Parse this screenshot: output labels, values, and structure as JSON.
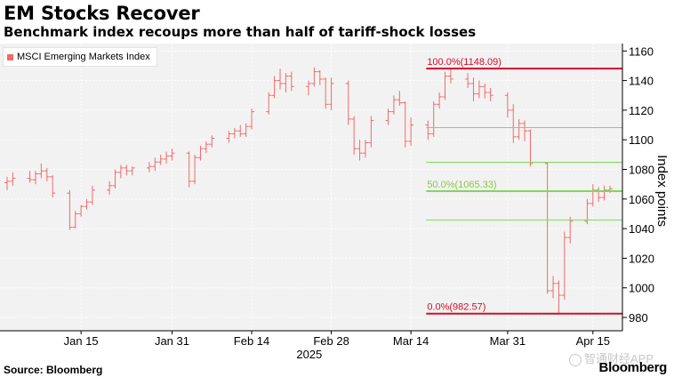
{
  "title": "EM Stocks Recover",
  "subtitle": "Benchmark index recoups more than half of tariff-shock losses",
  "source": "Source: Bloomberg",
  "brand": "Bloomberg",
  "watermark": "智通财经APP",
  "colors": {
    "candle": "#f06a6a",
    "level_red": "#d0102a",
    "level_green": "#7ed957",
    "level_gray": "#b0b0b0",
    "fib_label_red": "#d0102a",
    "fib_label_green": "#8cc63f"
  },
  "chart_data": {
    "type": "candlestick",
    "series": [
      {
        "name": "MSCI Emerging Markets Index",
        "ohlc": [
          {
            "date": "2025-01-02",
            "open": 1071,
            "high": 1075,
            "low": 1066,
            "close": 1072
          },
          {
            "date": "2025-01-03",
            "open": 1072,
            "high": 1078,
            "low": 1069,
            "close": 1074
          },
          {
            "date": "2025-01-06",
            "open": 1074,
            "high": 1079,
            "low": 1071,
            "close": 1073
          },
          {
            "date": "2025-01-07",
            "open": 1073,
            "high": 1079,
            "low": 1070,
            "close": 1077
          },
          {
            "date": "2025-01-08",
            "open": 1077,
            "high": 1084,
            "low": 1074,
            "close": 1079
          },
          {
            "date": "2025-01-09",
            "open": 1079,
            "high": 1081,
            "low": 1072,
            "close": 1075
          },
          {
            "date": "2025-01-10",
            "open": 1075,
            "high": 1076,
            "low": 1061,
            "close": 1064
          },
          {
            "date": "2025-01-13",
            "open": 1064,
            "high": 1066,
            "low": 1039,
            "close": 1041
          },
          {
            "date": "2025-01-14",
            "open": 1041,
            "high": 1052,
            "low": 1040,
            "close": 1050
          },
          {
            "date": "2025-01-15",
            "open": 1050,
            "high": 1056,
            "low": 1048,
            "close": 1055
          },
          {
            "date": "2025-01-16",
            "open": 1055,
            "high": 1060,
            "low": 1053,
            "close": 1058
          },
          {
            "date": "2025-01-17",
            "open": 1058,
            "high": 1069,
            "low": 1056,
            "close": 1066
          },
          {
            "date": "2025-01-20",
            "open": 1066,
            "high": 1072,
            "low": 1063,
            "close": 1069
          },
          {
            "date": "2025-01-21",
            "open": 1069,
            "high": 1080,
            "low": 1067,
            "close": 1078
          },
          {
            "date": "2025-01-22",
            "open": 1078,
            "high": 1083,
            "low": 1074,
            "close": 1081
          },
          {
            "date": "2025-01-23",
            "open": 1081,
            "high": 1083,
            "low": 1076,
            "close": 1079
          },
          {
            "date": "2025-01-24",
            "open": 1079,
            "high": 1082,
            "low": 1076,
            "close": 1081
          },
          {
            "date": "2025-01-27",
            "open": 1081,
            "high": 1085,
            "low": 1078,
            "close": 1082
          },
          {
            "date": "2025-01-28",
            "open": 1082,
            "high": 1088,
            "low": 1079,
            "close": 1085
          },
          {
            "date": "2025-01-29",
            "open": 1085,
            "high": 1090,
            "low": 1083,
            "close": 1087
          },
          {
            "date": "2025-01-30",
            "open": 1087,
            "high": 1092,
            "low": 1084,
            "close": 1089
          },
          {
            "date": "2025-01-31",
            "open": 1089,
            "high": 1094,
            "low": 1086,
            "close": 1091
          },
          {
            "date": "2025-02-03",
            "open": 1091,
            "high": 1092,
            "low": 1068,
            "close": 1072
          },
          {
            "date": "2025-02-04",
            "open": 1072,
            "high": 1090,
            "low": 1070,
            "close": 1088
          },
          {
            "date": "2025-02-05",
            "open": 1088,
            "high": 1096,
            "low": 1086,
            "close": 1094
          },
          {
            "date": "2025-02-06",
            "open": 1094,
            "high": 1099,
            "low": 1091,
            "close": 1097
          },
          {
            "date": "2025-02-07",
            "open": 1097,
            "high": 1103,
            "low": 1095,
            "close": 1101
          },
          {
            "date": "2025-02-10",
            "open": 1101,
            "high": 1106,
            "low": 1098,
            "close": 1104
          },
          {
            "date": "2025-02-11",
            "open": 1104,
            "high": 1108,
            "low": 1101,
            "close": 1106
          },
          {
            "date": "2025-02-12",
            "open": 1106,
            "high": 1110,
            "low": 1102,
            "close": 1104
          },
          {
            "date": "2025-02-13",
            "open": 1104,
            "high": 1111,
            "low": 1102,
            "close": 1109
          },
          {
            "date": "2025-02-14",
            "open": 1109,
            "high": 1121,
            "low": 1107,
            "close": 1119
          },
          {
            "date": "2025-02-17",
            "open": 1119,
            "high": 1132,
            "low": 1117,
            "close": 1130
          },
          {
            "date": "2025-02-18",
            "open": 1130,
            "high": 1143,
            "low": 1128,
            "close": 1140
          },
          {
            "date": "2025-02-19",
            "open": 1140,
            "high": 1148,
            "low": 1134,
            "close": 1138
          },
          {
            "date": "2025-02-20",
            "open": 1138,
            "high": 1145,
            "low": 1132,
            "close": 1143
          },
          {
            "date": "2025-02-21",
            "open": 1143,
            "high": 1146,
            "low": 1133,
            "close": 1136
          },
          {
            "date": "2025-02-24",
            "open": 1136,
            "high": 1140,
            "low": 1130,
            "close": 1138
          },
          {
            "date": "2025-02-25",
            "open": 1138,
            "high": 1149,
            "low": 1136,
            "close": 1146
          },
          {
            "date": "2025-02-26",
            "open": 1146,
            "high": 1147,
            "low": 1137,
            "close": 1141
          },
          {
            "date": "2025-02-27",
            "open": 1141,
            "high": 1142,
            "low": 1121,
            "close": 1124
          },
          {
            "date": "2025-02-28",
            "open": 1124,
            "high": 1142,
            "low": 1120,
            "close": 1138
          },
          {
            "date": "2025-03-03",
            "open": 1138,
            "high": 1140,
            "low": 1110,
            "close": 1114
          },
          {
            "date": "2025-03-04",
            "open": 1114,
            "high": 1116,
            "low": 1090,
            "close": 1094
          },
          {
            "date": "2025-03-05",
            "open": 1094,
            "high": 1100,
            "low": 1086,
            "close": 1091
          },
          {
            "date": "2025-03-06",
            "open": 1091,
            "high": 1100,
            "low": 1088,
            "close": 1098
          },
          {
            "date": "2025-03-07",
            "open": 1098,
            "high": 1116,
            "low": 1095,
            "close": 1113
          },
          {
            "date": "2025-03-10",
            "open": 1113,
            "high": 1121,
            "low": 1110,
            "close": 1119
          },
          {
            "date": "2025-03-11",
            "open": 1119,
            "high": 1130,
            "low": 1117,
            "close": 1127
          },
          {
            "date": "2025-03-12",
            "open": 1127,
            "high": 1133,
            "low": 1123,
            "close": 1125
          },
          {
            "date": "2025-03-13",
            "open": 1125,
            "high": 1126,
            "low": 1095,
            "close": 1099
          },
          {
            "date": "2025-03-14",
            "open": 1099,
            "high": 1115,
            "low": 1096,
            "close": 1110
          },
          {
            "date": "2025-03-17",
            "open": 1110,
            "high": 1113,
            "low": 1100,
            "close": 1104
          },
          {
            "date": "2025-03-18",
            "open": 1104,
            "high": 1126,
            "low": 1102,
            "close": 1124
          },
          {
            "date": "2025-03-19",
            "open": 1124,
            "high": 1132,
            "low": 1121,
            "close": 1129
          },
          {
            "date": "2025-03-20",
            "open": 1129,
            "high": 1146,
            "low": 1127,
            "close": 1143
          },
          {
            "date": "2025-03-21",
            "open": 1143,
            "high": 1148,
            "low": 1138,
            "close": 1141
          },
          {
            "date": "2025-03-24",
            "open": 1141,
            "high": 1145,
            "low": 1135,
            "close": 1138
          },
          {
            "date": "2025-03-25",
            "open": 1138,
            "high": 1142,
            "low": 1126,
            "close": 1131
          },
          {
            "date": "2025-03-26",
            "open": 1131,
            "high": 1140,
            "low": 1128,
            "close": 1136
          },
          {
            "date": "2025-03-27",
            "open": 1136,
            "high": 1138,
            "low": 1128,
            "close": 1132
          },
          {
            "date": "2025-03-28",
            "open": 1132,
            "high": 1135,
            "low": 1126,
            "close": 1130
          },
          {
            "date": "2025-03-31",
            "open": 1130,
            "high": 1132,
            "low": 1115,
            "close": 1120
          },
          {
            "date": "2025-04-01",
            "open": 1120,
            "high": 1124,
            "low": 1098,
            "close": 1102
          },
          {
            "date": "2025-04-02",
            "open": 1102,
            "high": 1114,
            "low": 1100,
            "close": 1111
          },
          {
            "date": "2025-04-03",
            "open": 1111,
            "high": 1113,
            "low": 1099,
            "close": 1106
          },
          {
            "date": "2025-04-04",
            "open": 1106,
            "high": 1107,
            "low": 1082,
            "close": 1084
          },
          {
            "date": "2025-04-07",
            "open": 1084,
            "high": 1085,
            "low": 996,
            "close": 998
          },
          {
            "date": "2025-04-08",
            "open": 998,
            "high": 1008,
            "low": 993,
            "close": 1003
          },
          {
            "date": "2025-04-09",
            "open": 1003,
            "high": 1005,
            "low": 982.57,
            "close": 995
          },
          {
            "date": "2025-04-10",
            "open": 995,
            "high": 1038,
            "low": 992,
            "close": 1034
          },
          {
            "date": "2025-04-11",
            "open": 1034,
            "high": 1048,
            "low": 1030,
            "close": 1045
          },
          {
            "date": "2025-04-14",
            "open": 1045,
            "high": 1060,
            "low": 1043,
            "close": 1057
          },
          {
            "date": "2025-04-15",
            "open": 1057,
            "high": 1070,
            "low": 1055,
            "close": 1066
          },
          {
            "date": "2025-04-16",
            "open": 1066,
            "high": 1068,
            "low": 1058,
            "close": 1061
          },
          {
            "date": "2025-04-17",
            "open": 1061,
            "high": 1069,
            "low": 1059,
            "close": 1066
          },
          {
            "date": "2025-04-18",
            "open": 1066,
            "high": 1069,
            "low": 1064,
            "close": 1067
          }
        ]
      }
    ],
    "x_tick_labels": [
      {
        "date": "2025-01-15",
        "label": "Jan 15"
      },
      {
        "date": "2025-01-31",
        "label": "Jan 31"
      },
      {
        "date": "2025-02-14",
        "label": "Feb 14"
      },
      {
        "date": "2025-02-28",
        "label": "Feb 28"
      },
      {
        "date": "2025-03-14",
        "label": "Mar 14"
      },
      {
        "date": "2025-03-31",
        "label": "Mar 31"
      },
      {
        "date": "2025-04-15",
        "label": "Apr 15"
      }
    ],
    "x_year_label": "2025",
    "ylabel": "Index points",
    "ylim": [
      971,
      1165
    ],
    "yticks": [
      980,
      1000,
      1020,
      1040,
      1060,
      1080,
      1100,
      1120,
      1140,
      1160
    ],
    "grid": true,
    "legend_position": "top-left",
    "fib_start_date": "2025-03-17",
    "retracement_levels": [
      {
        "value": 1148.09,
        "label": "100.0%(1148.09)",
        "style": "red"
      },
      {
        "value": 1108.25,
        "label": "",
        "style": "gray"
      },
      {
        "value": 1084.84,
        "label": "",
        "style": "green"
      },
      {
        "value": 1065.33,
        "label": "50.0%(1065.33)",
        "style": "green-bold"
      },
      {
        "value": 1045.82,
        "label": "",
        "style": "green"
      },
      {
        "value": 982.57,
        "label": "0.0%(982.57)",
        "style": "red"
      }
    ]
  }
}
